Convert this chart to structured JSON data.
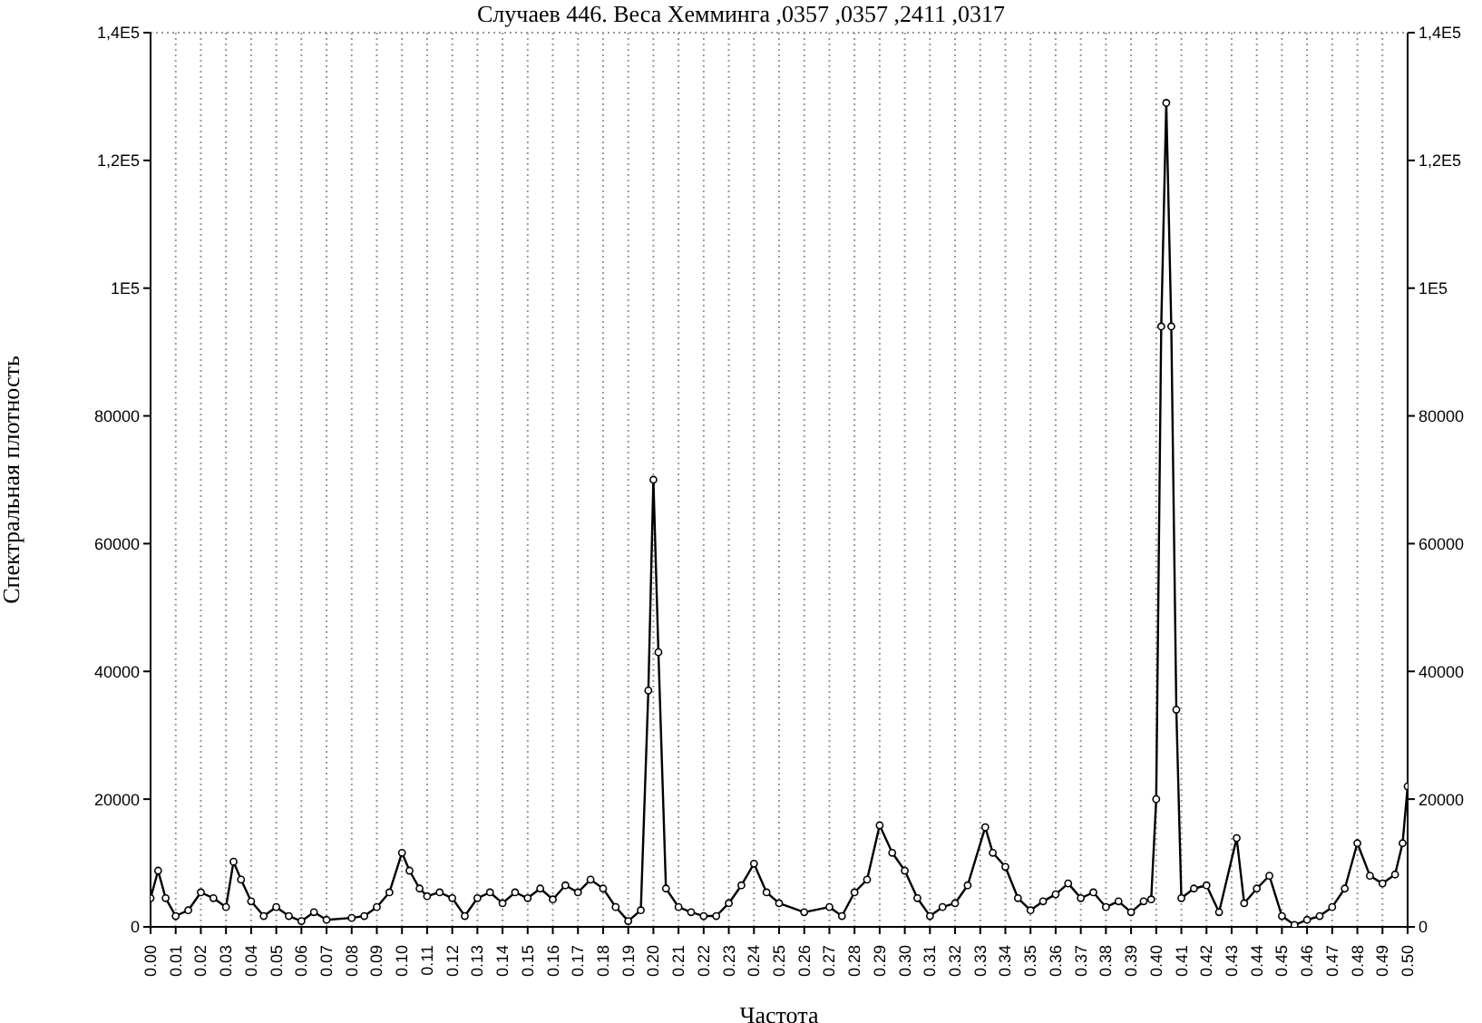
{
  "chart_data": {
    "type": "line",
    "title": "Случаев 446. Веса Хемминга ,0357 ,0357 ,2411 ,0317",
    "xlabel": "Частота",
    "ylabel": "Спектральная плотность",
    "x": [
      0,
      0.003,
      0.006,
      0.01,
      0.015,
      0.02,
      0.025,
      0.03,
      0.033,
      0.036,
      0.04,
      0.045,
      0.05,
      0.055,
      0.06,
      0.065,
      0.07,
      0.08,
      0.085,
      0.09,
      0.095,
      0.1,
      0.103,
      0.107,
      0.11,
      0.115,
      0.12,
      0.125,
      0.13,
      0.135,
      0.14,
      0.145,
      0.15,
      0.155,
      0.16,
      0.165,
      0.17,
      0.175,
      0.18,
      0.185,
      0.19,
      0.195,
      0.198,
      0.2,
      0.202,
      0.205,
      0.21,
      0.215,
      0.22,
      0.225,
      0.23,
      0.235,
      0.24,
      0.245,
      0.25,
      0.26,
      0.27,
      0.275,
      0.28,
      0.285,
      0.29,
      0.295,
      0.3,
      0.305,
      0.31,
      0.315,
      0.32,
      0.325,
      0.332,
      0.335,
      0.34,
      0.345,
      0.35,
      0.355,
      0.36,
      0.365,
      0.37,
      0.375,
      0.38,
      0.385,
      0.39,
      0.395,
      0.398,
      0.4,
      0.402,
      0.404,
      0.406,
      0.408,
      0.41,
      0.415,
      0.42,
      0.425,
      0.432,
      0.435,
      0.44,
      0.445,
      0.45,
      0.455,
      0.46,
      0.465,
      0.47,
      0.475,
      0.48,
      0.485,
      0.49,
      0.495,
      0.498,
      0.5
    ],
    "series": [
      {
        "color": "#000000",
        "values": [
          4500,
          8800,
          4500,
          1700,
          2600,
          5400,
          4500,
          3100,
          10200,
          7400,
          4000,
          1700,
          3100,
          1700,
          900,
          2300,
          1100,
          1400,
          1700,
          3100,
          5400,
          11600,
          8800,
          6000,
          4800,
          5400,
          4500,
          1700,
          4500,
          5400,
          3700,
          5400,
          4500,
          6000,
          4300,
          6500,
          5400,
          7400,
          6000,
          3100,
          900,
          2600,
          37000,
          70000,
          43000,
          6000,
          3100,
          2300,
          1700,
          1700,
          3700,
          6500,
          9900,
          5400,
          3700,
          2300,
          3100,
          1700,
          5400,
          7400,
          15900,
          11600,
          8800,
          4500,
          1700,
          3100,
          3700,
          6500,
          15600,
          11600,
          9400,
          4500,
          2600,
          4000,
          5100,
          6800,
          4500,
          5400,
          3100,
          4000,
          2300,
          4000,
          4300,
          20000,
          94000,
          129000,
          94000,
          34000,
          4500,
          6000,
          6500,
          2300,
          13900,
          3700,
          6000,
          8000,
          1700,
          300,
          1100,
          1700,
          3100,
          6000,
          13100,
          8000,
          6800,
          8200,
          13100,
          22000
        ]
      }
    ],
    "xlim": [
      0,
      0.5
    ],
    "xticks": [
      {
        "value": 0,
        "label": "0.00"
      },
      {
        "value": 0.01,
        "label": "0.01"
      },
      {
        "value": 0.02,
        "label": "0.02"
      },
      {
        "value": 0.03,
        "label": "0.03"
      },
      {
        "value": 0.04,
        "label": "0.04"
      },
      {
        "value": 0.05,
        "label": "0.05"
      },
      {
        "value": 0.06,
        "label": "0.06"
      },
      {
        "value": 0.07,
        "label": "0.07"
      },
      {
        "value": 0.08,
        "label": "0.08"
      },
      {
        "value": 0.09,
        "label": "0.09"
      },
      {
        "value": 0.1,
        "label": "0.10"
      },
      {
        "value": 0.11,
        "label": "0.11"
      },
      {
        "value": 0.12,
        "label": "0.12"
      },
      {
        "value": 0.13,
        "label": "0.13"
      },
      {
        "value": 0.14,
        "label": "0.14"
      },
      {
        "value": 0.15,
        "label": "0.15"
      },
      {
        "value": 0.16,
        "label": "0.16"
      },
      {
        "value": 0.17,
        "label": "0.17"
      },
      {
        "value": 0.18,
        "label": "0.18"
      },
      {
        "value": 0.19,
        "label": "0.19"
      },
      {
        "value": 0.2,
        "label": "0.20"
      },
      {
        "value": 0.21,
        "label": "0.21"
      },
      {
        "value": 0.22,
        "label": "0.22"
      },
      {
        "value": 0.23,
        "label": "0.23"
      },
      {
        "value": 0.24,
        "label": "0.24"
      },
      {
        "value": 0.25,
        "label": "0.25"
      },
      {
        "value": 0.26,
        "label": "0.26"
      },
      {
        "value": 0.27,
        "label": "0.27"
      },
      {
        "value": 0.28,
        "label": "0.28"
      },
      {
        "value": 0.29,
        "label": "0.29"
      },
      {
        "value": 0.3,
        "label": "0.30"
      },
      {
        "value": 0.31,
        "label": "0.31"
      },
      {
        "value": 0.32,
        "label": "0.32"
      },
      {
        "value": 0.33,
        "label": "0.33"
      },
      {
        "value": 0.34,
        "label": "0.34"
      },
      {
        "value": 0.35,
        "label": "0.35"
      },
      {
        "value": 0.36,
        "label": "0.36"
      },
      {
        "value": 0.37,
        "label": "0.37"
      },
      {
        "value": 0.38,
        "label": "0.38"
      },
      {
        "value": 0.39,
        "label": "0.39"
      },
      {
        "value": 0.4,
        "label": "0.40"
      },
      {
        "value": 0.41,
        "label": "0.41"
      },
      {
        "value": 0.42,
        "label": "0.42"
      },
      {
        "value": 0.43,
        "label": "0.43"
      },
      {
        "value": 0.44,
        "label": "0.44"
      },
      {
        "value": 0.45,
        "label": "0.45"
      },
      {
        "value": 0.46,
        "label": "0.46"
      },
      {
        "value": 0.47,
        "label": "0.47"
      },
      {
        "value": 0.48,
        "label": "0.48"
      },
      {
        "value": 0.49,
        "label": "0.49"
      },
      {
        "value": 0.5,
        "label": "0.50"
      }
    ],
    "ylim": [
      0,
      140000
    ],
    "yticks": [
      0,
      20000,
      40000,
      60000,
      80000,
      {
        "value": 100000,
        "label": "1E5"
      },
      {
        "value": 120000,
        "label": "1,2E5"
      },
      {
        "value": 140000,
        "label": "1,4E5"
      }
    ],
    "y2lim": [
      0,
      140000
    ],
    "y2ticks": [
      0,
      20000,
      40000,
      60000,
      80000,
      {
        "value": 100000,
        "label": "1E5"
      },
      {
        "value": 120000,
        "label": "1,2E5"
      },
      {
        "value": 140000,
        "label": "1,4E5"
      }
    ],
    "grid": true,
    "marker": "circle",
    "line_style": "solid"
  }
}
